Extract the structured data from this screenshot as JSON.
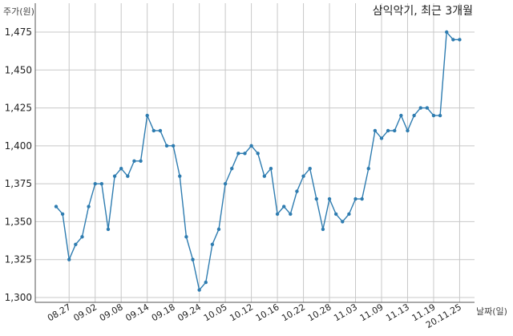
{
  "chart_data": {
    "type": "line",
    "title": "삼익악기, 최근 3개월",
    "ylabel": "주가(원)",
    "xlabel": "날짜(일)",
    "ylim": [
      1300,
      1475
    ],
    "yticks": [
      1300,
      1325,
      1350,
      1375,
      1400,
      1425,
      1450,
      1475
    ],
    "ytick_labels": [
      "1,300",
      "1,325",
      "1,350",
      "1,375",
      "1,400",
      "1,425",
      "1,450",
      "1,475"
    ],
    "xtick_labels": [
      "08.27",
      "09.02",
      "09.08",
      "09.14",
      "09.18",
      "09.24",
      "10.05",
      "10.12",
      "10.16",
      "10.22",
      "10.28",
      "11.03",
      "11.09",
      "11.13",
      "11.19",
      "20.11.25"
    ],
    "xtick_positions": [
      2,
      6,
      10,
      14,
      18,
      22,
      26,
      30,
      34,
      38,
      42,
      46,
      50,
      54,
      58,
      62
    ],
    "grid": true,
    "line_color": "#2e7cb0",
    "series": [
      {
        "values": [
          1360,
          1355,
          1325,
          1335,
          1340,
          1360,
          1375,
          1375,
          1345,
          1380,
          1385,
          1380,
          1390,
          1390,
          1420,
          1410,
          1410,
          1400,
          1400,
          1380,
          1340,
          1325,
          1305,
          1310,
          1335,
          1345,
          1375,
          1385,
          1395,
          1395,
          1400,
          1395,
          1380,
          1385,
          1355,
          1360,
          1355,
          1370,
          1380,
          1385,
          1365,
          1345,
          1365,
          1355,
          1350,
          1355,
          1365,
          1365,
          1385,
          1410,
          1405,
          1410,
          1410,
          1420,
          1410,
          1420,
          1425,
          1425,
          1420,
          1420,
          1475,
          1470,
          1470
        ]
      }
    ]
  }
}
